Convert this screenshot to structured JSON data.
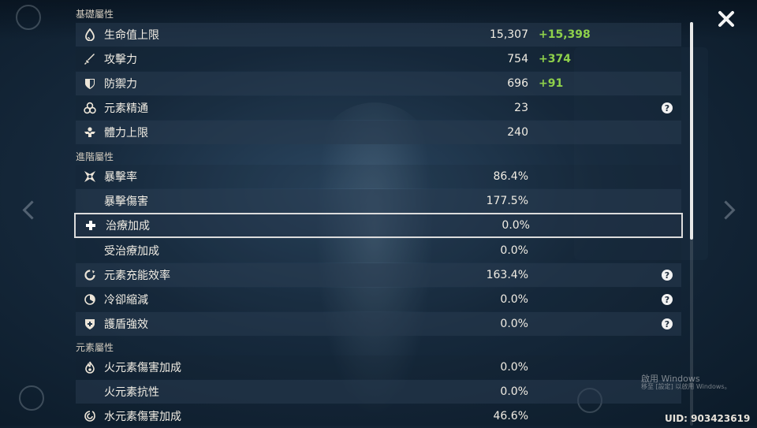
{
  "sections": {
    "base": "基礎屬性",
    "advanced": "進階屬性",
    "elemental": "元素屬性"
  },
  "stats": [
    {
      "label": "生命值上限",
      "value": "15,307",
      "bonus": "+15,398",
      "icon": "hp-drop-icon"
    },
    {
      "label": "攻擊力",
      "value": "754",
      "bonus": "+374",
      "icon": "sword-icon"
    },
    {
      "label": "防禦力",
      "value": "696",
      "bonus": "+91",
      "icon": "shield-icon"
    },
    {
      "label": "元素精通",
      "value": "23",
      "icon": "elemental-mastery-icon",
      "help": "?"
    },
    {
      "label": "體力上限",
      "value": "240",
      "icon": "stamina-icon"
    },
    {
      "label": "暴擊率",
      "value": "86.4%",
      "icon": "crit-rate-icon"
    },
    {
      "label": "暴擊傷害",
      "value": "177.5%"
    },
    {
      "label": "治療加成",
      "value": "0.0%",
      "icon": "healing-cross-icon"
    },
    {
      "label": "受治療加成",
      "value": "0.0%"
    },
    {
      "label": "元素充能效率",
      "value": "163.4%",
      "icon": "energy-recharge-icon",
      "help": "?"
    },
    {
      "label": "冷卻縮減",
      "value": "0.0%",
      "icon": "cooldown-icon",
      "help": "?"
    },
    {
      "label": "護盾強效",
      "value": "0.0%",
      "icon": "shield-strength-icon",
      "help": "?"
    },
    {
      "label": "火元素傷害加成",
      "value": "0.0%",
      "icon": "pyro-icon"
    },
    {
      "label": "火元素抗性",
      "value": "0.0%"
    },
    {
      "label": "水元素傷害加成",
      "value": "46.6%",
      "icon": "hydro-icon"
    }
  ],
  "watermark": {
    "title": "啟用 Windows",
    "subtitle": "移至 [設定] 以啟用 Windows。"
  },
  "uid": "UID: 903423619",
  "colors": {
    "bonus": "#8ed14b",
    "text": "#f1ede4",
    "row_shade": "#283a4e"
  }
}
